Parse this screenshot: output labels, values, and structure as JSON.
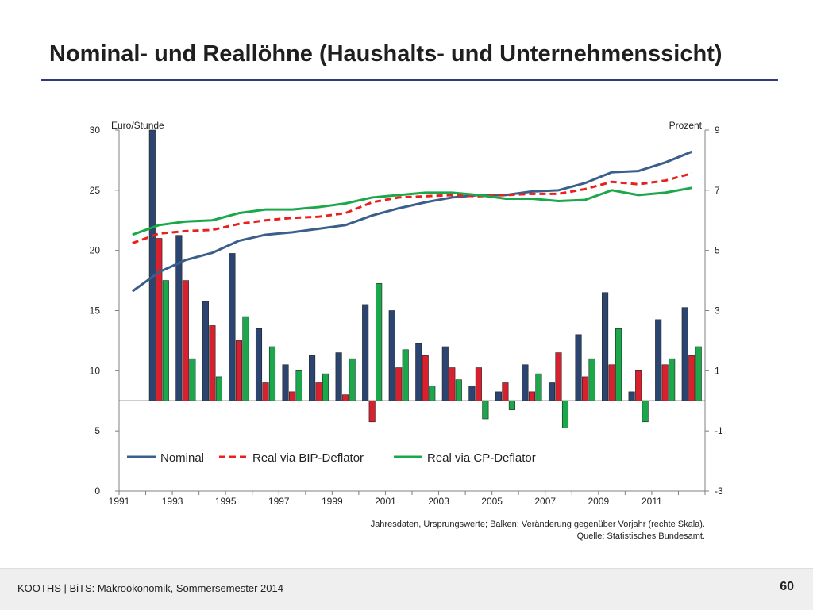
{
  "slide": {
    "title": "Nominal- und Reallöhne (Haushalts- und Unternehmenssicht)",
    "footer": "KOOTHS | BiTS: Makroökonomik, Sommersemester 2014",
    "page_number": "60"
  },
  "chart_data": {
    "type": "bar",
    "left_axis_label": "Euro/Stunde",
    "right_axis_label": "Prozent",
    "left_ylim": [
      0,
      30
    ],
    "right_ylim": [
      -3,
      9
    ],
    "left_ticks": [
      "0",
      "5",
      "10",
      "15",
      "20",
      "25",
      "30"
    ],
    "right_ticks": [
      "-3",
      "-1",
      "1",
      "3",
      "5",
      "7",
      "9"
    ],
    "x_tick_labels": [
      "1991",
      "1993",
      "1995",
      "1997",
      "1999",
      "2001",
      "2003",
      "2005",
      "2007",
      "2009",
      "2011"
    ],
    "years": [
      1991,
      1992,
      1993,
      1994,
      1995,
      1996,
      1997,
      1998,
      1999,
      2000,
      2001,
      2002,
      2003,
      2004,
      2005,
      2006,
      2007,
      2008,
      2009,
      2010,
      2011,
      2012
    ],
    "grid": false,
    "legend_position": "lower-left inside",
    "lines": [
      {
        "name": "Nominal",
        "axis": "left",
        "color": "#3a5f8a",
        "dash": "solid",
        "values": [
          16.6,
          18.2,
          19.2,
          19.8,
          20.8,
          21.3,
          21.5,
          21.8,
          22.1,
          22.9,
          23.5,
          24.0,
          24.4,
          24.6,
          24.6,
          24.9,
          25.0,
          25.6,
          26.5,
          26.6,
          27.3,
          28.2
        ]
      },
      {
        "name": "Real via BIP-Deflator",
        "axis": "left",
        "color": "#e8211d",
        "dash": "dashed",
        "values": [
          20.6,
          21.4,
          21.6,
          21.7,
          22.2,
          22.5,
          22.7,
          22.8,
          23.1,
          24.0,
          24.4,
          24.5,
          24.6,
          24.5,
          24.6,
          24.7,
          24.7,
          25.1,
          25.7,
          25.5,
          25.8,
          26.4
        ]
      },
      {
        "name": "Real via CP-Deflator",
        "axis": "left",
        "color": "#1aa84a",
        "dash": "solid",
        "values": [
          21.3,
          22.1,
          22.4,
          22.5,
          23.1,
          23.4,
          23.4,
          23.6,
          23.9,
          24.4,
          24.6,
          24.8,
          24.8,
          24.6,
          24.3,
          24.3,
          24.1,
          24.2,
          25.0,
          24.6,
          24.8,
          25.2
        ]
      }
    ],
    "bars": [
      {
        "name": "Nominal",
        "axis": "right",
        "color": "#2b4470",
        "values": [
          null,
          9.0,
          5.5,
          3.3,
          4.9,
          2.4,
          1.2,
          1.5,
          1.6,
          3.2,
          3.0,
          1.9,
          1.8,
          0.5,
          0.3,
          1.2,
          0.6,
          2.2,
          3.6,
          0.3,
          2.7,
          3.1
        ]
      },
      {
        "name": "Real via BIP-Deflator",
        "axis": "right",
        "color": "#d9202f",
        "values": [
          null,
          5.4,
          4.0,
          2.5,
          2.0,
          0.6,
          0.3,
          0.6,
          0.2,
          -0.7,
          1.1,
          1.5,
          1.1,
          1.1,
          0.6,
          0.3,
          1.6,
          0.8,
          1.2,
          1.0,
          1.2,
          1.5
        ]
      },
      {
        "name": "Real via CP-Deflator",
        "axis": "right",
        "color": "#1aa84a",
        "values": [
          null,
          4.0,
          1.4,
          0.8,
          2.8,
          1.8,
          1.0,
          0.9,
          1.4,
          3.9,
          1.7,
          0.5,
          0.7,
          -0.6,
          -0.3,
          0.9,
          -0.9,
          1.4,
          2.4,
          -0.7,
          1.4,
          1.8
        ]
      }
    ],
    "legend": [
      "Nominal",
      "Real via BIP-Deflator",
      "Real via CP-Deflator"
    ],
    "notes": [
      "Jahresdaten, Ursprungswerte; Balken: Veränderung gegenüber Vorjahr (rechte Skala).",
      "Quelle: Statistisches Bundesamt."
    ]
  }
}
